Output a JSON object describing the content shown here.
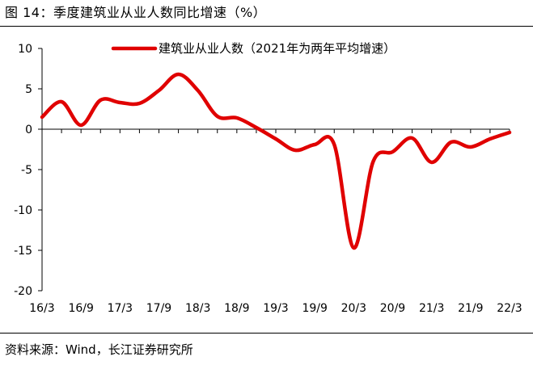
{
  "title": "图 14：季度建筑业从业人数同比增速（%）",
  "source": "资料来源：Wind，长江证券研究所",
  "chart_data": {
    "type": "line",
    "title": "",
    "xlabel": "",
    "ylabel": "",
    "ylim": [
      -20,
      10
    ],
    "yticks": [
      10,
      5,
      0,
      -5,
      -10,
      -15,
      -20
    ],
    "grid": false,
    "legend_position": "top-right",
    "x": [
      "16/3",
      "16/6",
      "16/9",
      "16/12",
      "17/3",
      "17/6",
      "17/9",
      "17/12",
      "18/3",
      "18/6",
      "18/9",
      "18/12",
      "19/3",
      "19/6",
      "19/9",
      "19/12",
      "20/3",
      "20/6",
      "20/9",
      "20/12",
      "21/3",
      "21/6",
      "21/9",
      "21/12",
      "22/3"
    ],
    "xtick_labels": [
      "16/3",
      "16/9",
      "17/3",
      "17/9",
      "18/3",
      "18/9",
      "19/3",
      "19/9",
      "20/3",
      "20/9",
      "21/3",
      "21/9",
      "22/3"
    ],
    "series": [
      {
        "name": "建筑业从业人数（2021年为两年平均增速）",
        "color": "#e00000",
        "values": [
          1.5,
          3.4,
          0.5,
          3.6,
          3.3,
          3.2,
          4.8,
          6.8,
          4.8,
          1.6,
          1.4,
          0.2,
          -1.2,
          -2.6,
          -1.9,
          -1.9,
          -14.7,
          -4.0,
          -2.8,
          -1.1,
          -4.1,
          -1.6,
          -2.2,
          -1.2,
          -0.4
        ]
      }
    ]
  }
}
